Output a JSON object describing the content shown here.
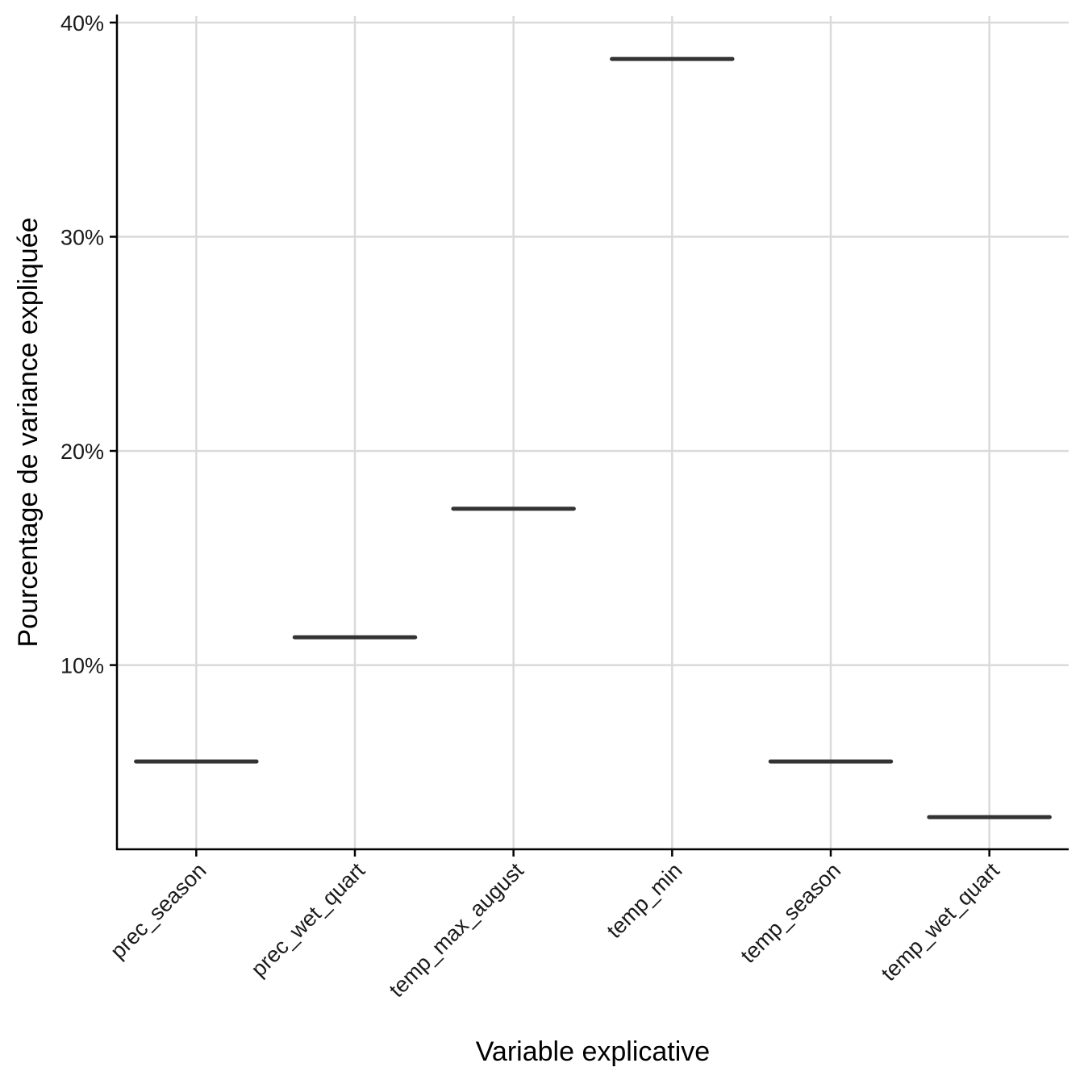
{
  "chart_data": {
    "type": "boxplot",
    "title": "",
    "xlabel": "Variable explicative",
    "ylabel": "Pourcentage de variance expliquée",
    "categories": [
      "prec_season",
      "prec_wet_quart",
      "temp_max_august",
      "temp_min",
      "temp_season",
      "temp_wet_quart"
    ],
    "values": [
      5.5,
      11.3,
      17.3,
      38.3,
      5.5,
      2.9
    ],
    "ylim": [
      1.4,
      40.3
    ],
    "yticks": [
      10,
      20,
      30,
      40
    ],
    "ytick_labels": [
      "10%",
      "20%",
      "30%",
      "40%"
    ],
    "grid": true,
    "legend": "none",
    "colors": {
      "median": "#333333",
      "grid": "#dadada",
      "axis": "#000000"
    }
  }
}
